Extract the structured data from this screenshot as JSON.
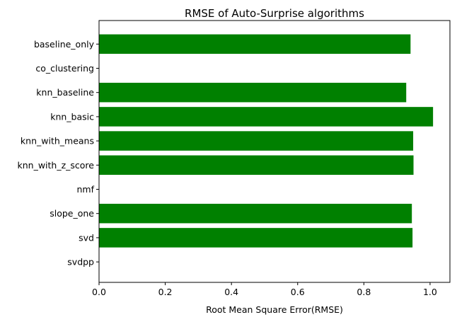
{
  "chart_data": {
    "type": "bar",
    "orientation": "horizontal",
    "title": "RMSE of Auto-Surprise algorithms",
    "xlabel": "Root Mean Square Error(RMSE)",
    "ylabel": "",
    "xlim": [
      0,
      1.06
    ],
    "xticks": [
      0.0,
      0.2,
      0.4,
      0.6,
      0.8,
      1.0
    ],
    "xtick_labels": [
      "0.0",
      "0.2",
      "0.4",
      "0.6",
      "0.8",
      "1.0"
    ],
    "categories": [
      "baseline_only",
      "co_clustering",
      "knn_baseline",
      "knn_basic",
      "knn_with_means",
      "knn_with_z_score",
      "nmf",
      "slope_one",
      "svd",
      "svdpp"
    ],
    "values": [
      0.941,
      null,
      0.928,
      1.009,
      0.949,
      0.95,
      null,
      0.945,
      0.947,
      null
    ],
    "bar_color": "#008000",
    "grid": false,
    "legend": false
  }
}
